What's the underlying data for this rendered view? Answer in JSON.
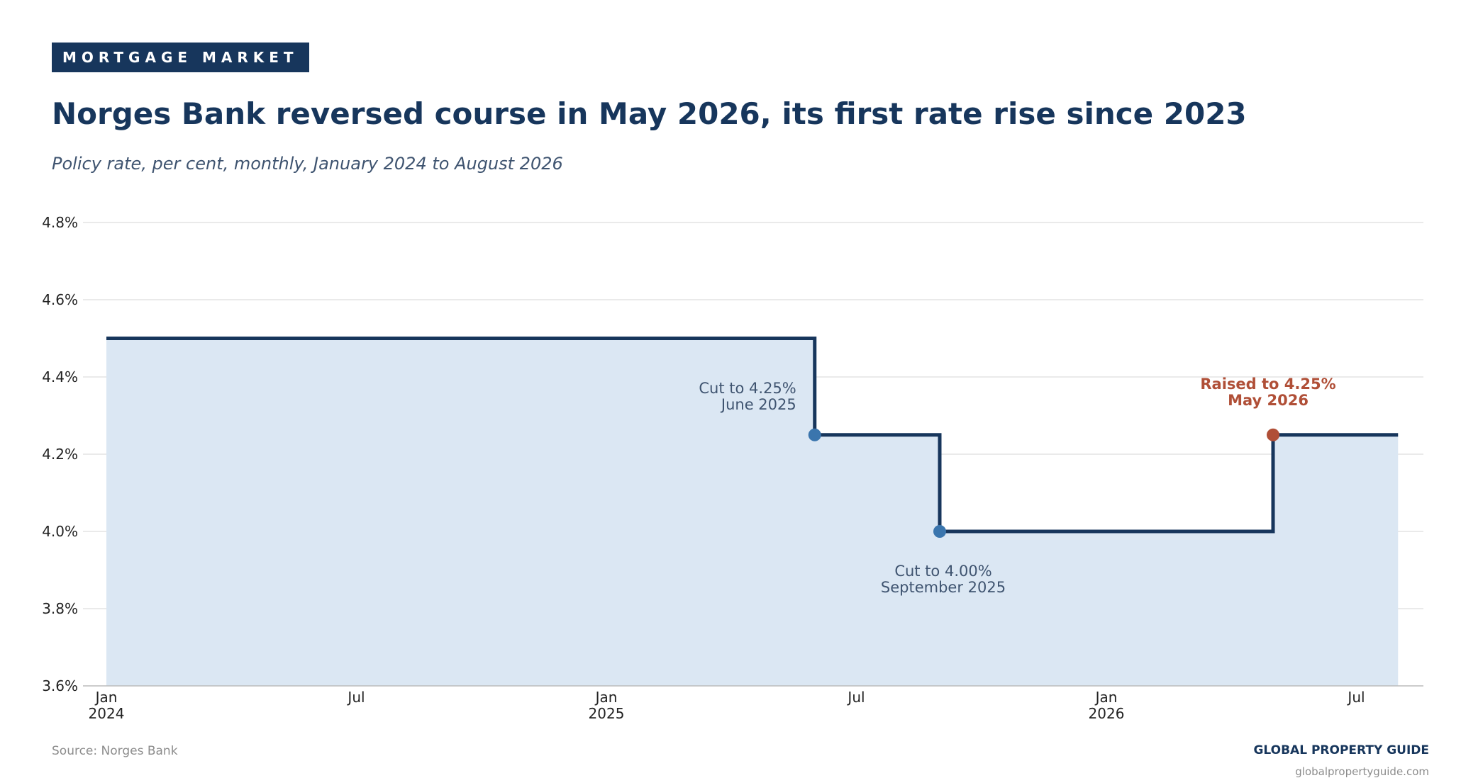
{
  "header": {
    "kicker": "MORTGAGE MARKET",
    "title": "Norges Bank reversed course in May 2026, its first rate rise since 2023",
    "subtitle": "Policy rate, per cent, monthly, January 2024 to August 2026"
  },
  "footer": {
    "source": "Source: Norges Bank",
    "brand": "GLOBAL PROPERTY GUIDE",
    "url": "globalpropertyguide.com"
  },
  "colors": {
    "navy": "#17365c",
    "area_fill": "#dbe7f3",
    "cut_marker": "#3a75ad",
    "raise_marker": "#b04f37",
    "grid": "#dddddd",
    "annotation_text": "#3f5470"
  },
  "chart_data": {
    "type": "area",
    "step": true,
    "title": "Norges Bank reversed course in May 2026, its first rate rise since 2023",
    "subtitle": "Policy rate, per cent, monthly, January 2024 to August 2026",
    "xlabel": "",
    "ylabel": "",
    "x": [
      "2024-01",
      "2024-02",
      "2024-03",
      "2024-04",
      "2024-05",
      "2024-06",
      "2024-07",
      "2024-08",
      "2024-09",
      "2024-10",
      "2024-11",
      "2024-12",
      "2025-01",
      "2025-02",
      "2025-03",
      "2025-04",
      "2025-05",
      "2025-06",
      "2025-07",
      "2025-08",
      "2025-09",
      "2025-10",
      "2025-11",
      "2025-12",
      "2026-01",
      "2026-02",
      "2026-03",
      "2026-04",
      "2026-05",
      "2026-06",
      "2026-07",
      "2026-08"
    ],
    "series": [
      {
        "values": [
          4.5,
          4.5,
          4.5,
          4.5,
          4.5,
          4.5,
          4.5,
          4.5,
          4.5,
          4.5,
          4.5,
          4.5,
          4.5,
          4.5,
          4.5,
          4.5,
          4.5,
          4.25,
          4.25,
          4.25,
          4.0,
          4.0,
          4.0,
          4.0,
          4.0,
          4.0,
          4.0,
          4.0,
          4.25,
          4.25,
          4.25,
          4.25
        ]
      }
    ],
    "ylim": [
      3.6,
      4.8
    ],
    "y_ticks": [
      3.6,
      3.8,
      4.0,
      4.2,
      4.4,
      4.6,
      4.8
    ],
    "y_tick_labels": [
      "3.6%",
      "3.8%",
      "4.0%",
      "4.2%",
      "4.4%",
      "4.6%",
      "4.8%"
    ],
    "x_ticks": [
      {
        "date": "2024-01",
        "label": "Jan",
        "year": "2024"
      },
      {
        "date": "2024-07",
        "label": "Jul",
        "year": ""
      },
      {
        "date": "2025-01",
        "label": "Jan",
        "year": "2025"
      },
      {
        "date": "2025-07",
        "label": "Jul",
        "year": ""
      },
      {
        "date": "2026-01",
        "label": "Jan",
        "year": "2026"
      },
      {
        "date": "2026-07",
        "label": "Jul",
        "year": ""
      }
    ],
    "grid": "horizontal",
    "annotations": [
      {
        "date": "2025-06",
        "value": 4.25,
        "kind": "cut",
        "line1": "Cut to 4.25%",
        "line2": "June 2025",
        "position": "upper-left"
      },
      {
        "date": "2025-09",
        "value": 4.0,
        "kind": "cut",
        "line1": "Cut to 4.00%",
        "line2": "September 2025",
        "position": "below"
      },
      {
        "date": "2026-05",
        "value": 4.25,
        "kind": "raise",
        "line1": "Raised to 4.25%",
        "line2": "May 2026",
        "position": "above"
      }
    ]
  }
}
